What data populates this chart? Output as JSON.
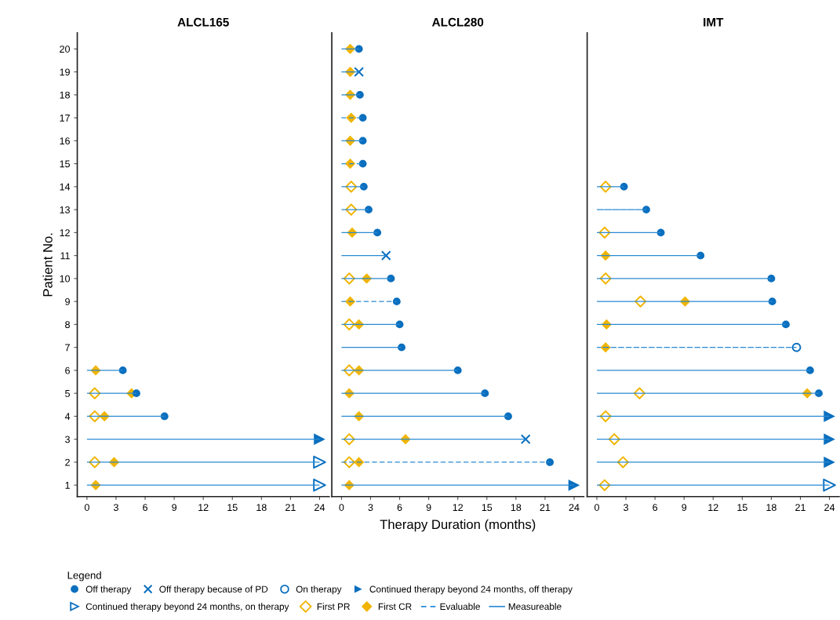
{
  "chart_data": [
    {
      "type": "bar",
      "orientation": "horizontal",
      "title": "ALCL165",
      "ylabel": "Patient No.",
      "categories": [
        "20",
        "19",
        "18",
        "17",
        "16",
        "15",
        "14",
        "13",
        "12",
        "11",
        "10",
        "9",
        "8",
        "7",
        "6",
        "5",
        "4",
        "3",
        "2",
        "1"
      ],
      "xlim": [
        -1,
        25
      ],
      "xticks": [
        0,
        3,
        6,
        9,
        12,
        15,
        18,
        21,
        24
      ],
      "series": [
        {
          "line_style": "solid",
          "color": "#2a8ad4",
          "values": [
            null,
            null,
            null,
            null,
            null,
            null,
            null,
            null,
            null,
            null,
            null,
            null,
            null,
            null,
            3.7,
            5.1,
            8.0,
            24,
            24,
            24
          ]
        },
        {
          "type": "scatter",
          "marker": "diamond-open",
          "color": "#f0b400",
          "values": [
            null,
            null,
            null,
            null,
            null,
            null,
            null,
            null,
            null,
            null,
            null,
            null,
            null,
            null,
            null,
            0.8,
            0.8,
            null,
            0.8,
            null
          ]
        },
        {
          "type": "scatter",
          "marker": "diamond",
          "color": "#f0b400",
          "values": [
            null,
            null,
            null,
            null,
            null,
            null,
            null,
            null,
            null,
            null,
            null,
            null,
            null,
            null,
            0.9,
            4.6,
            1.8,
            null,
            2.8,
            0.9
          ]
        },
        {
          "type": "scatter",
          "marker": "circle",
          "color": "#0a6fbf",
          "values": [
            null,
            null,
            null,
            null,
            null,
            null,
            null,
            null,
            null,
            null,
            null,
            null,
            null,
            null,
            3.7,
            5.1,
            8.0,
            null,
            null,
            null
          ]
        },
        {
          "type": "scatter",
          "marker": "triangle",
          "color": "#0a6fbf",
          "values": [
            null,
            null,
            null,
            null,
            null,
            null,
            null,
            null,
            null,
            null,
            null,
            null,
            null,
            null,
            null,
            null,
            null,
            24,
            null,
            null
          ]
        },
        {
          "type": "scatter",
          "marker": "triangle-open",
          "color": "#0a6fbf",
          "values": [
            null,
            null,
            null,
            null,
            null,
            null,
            null,
            null,
            null,
            null,
            null,
            null,
            null,
            null,
            null,
            null,
            null,
            null,
            24,
            24
          ]
        }
      ]
    },
    {
      "type": "bar",
      "orientation": "horizontal",
      "title": "ALCL280",
      "xlabel": "Therapy Duration (months)",
      "tick_labels": "x",
      "legend": "bottom",
      "legend_title": "Legend",
      "categories": [
        "20",
        "19",
        "18",
        "17",
        "16",
        "15",
        "14",
        "13",
        "12",
        "11",
        "10",
        "9",
        "8",
        "7",
        "6",
        "5",
        "4",
        "3",
        "2",
        "1"
      ],
      "xlim": [
        -1,
        25
      ],
      "xticks": [
        0,
        3,
        6,
        9,
        12,
        15,
        18,
        21,
        24
      ],
      "series": [
        {
          "name": "Off therapy",
          "type": "scatter",
          "marker": "circle",
          "color": "#0a6fbf",
          "values": [
            1.8,
            null,
            1.9,
            2.2,
            2.2,
            2.2,
            2.3,
            2.8,
            3.7,
            null,
            5.1,
            5.7,
            6.0,
            6.2,
            12.0,
            14.8,
            17.2,
            null,
            21.5,
            null
          ]
        },
        {
          "name": "Off therapy because of PD",
          "type": "scatter",
          "marker": "cross",
          "color": "#0a6fbf",
          "values": [
            null,
            1.8,
            null,
            null,
            null,
            null,
            null,
            null,
            null,
            4.6,
            null,
            null,
            null,
            null,
            null,
            null,
            null,
            19.0,
            null,
            null
          ]
        },
        {
          "name": "On therapy",
          "type": "scatter",
          "marker": "circle-open",
          "color": "#0a6fbf",
          "values": [
            null,
            null,
            null,
            null,
            null,
            null,
            null,
            null,
            null,
            null,
            null,
            null,
            null,
            null,
            null,
            null,
            null,
            null,
            null,
            null
          ]
        },
        {
          "name": "Continued therapy beyond 24 months, off therapy",
          "type": "scatter",
          "marker": "triangle",
          "color": "#0a6fbf",
          "values": [
            null,
            null,
            null,
            null,
            null,
            null,
            null,
            null,
            null,
            null,
            null,
            null,
            null,
            null,
            null,
            null,
            null,
            null,
            null,
            24
          ]
        },
        {
          "name": "Continued therapy beyond 24 months, on therapy",
          "type": "scatter",
          "marker": "triangle-open",
          "color": "#0a6fbf",
          "values": [
            null,
            null,
            null,
            null,
            null,
            null,
            null,
            null,
            null,
            null,
            null,
            null,
            null,
            null,
            null,
            null,
            null,
            null,
            null,
            null
          ]
        },
        {
          "name": "First PR",
          "type": "scatter",
          "marker": "diamond-open",
          "color": "#f0b400",
          "values": [
            null,
            null,
            null,
            null,
            null,
            null,
            1.0,
            1.0,
            null,
            null,
            0.8,
            null,
            0.8,
            null,
            0.8,
            null,
            null,
            0.8,
            0.8,
            null
          ]
        },
        {
          "name": "First CR",
          "type": "scatter",
          "marker": "diamond",
          "color": "#f0b400",
          "values": [
            0.9,
            0.9,
            0.9,
            1.0,
            0.9,
            0.9,
            null,
            null,
            1.1,
            null,
            2.6,
            0.9,
            1.8,
            null,
            1.8,
            0.8,
            1.8,
            6.6,
            1.8,
            0.8
          ]
        },
        {
          "name": "Evaluable",
          "line_style": "dashed",
          "color": "#2a8ad4",
          "values": [
            null,
            null,
            null,
            2.2,
            null,
            2.2,
            null,
            null,
            null,
            null,
            null,
            5.7,
            null,
            null,
            null,
            null,
            null,
            null,
            21.5,
            null
          ]
        },
        {
          "name": "Measureable",
          "line_style": "solid",
          "color": "#2a8ad4",
          "values": [
            1.8,
            1.8,
            1.9,
            null,
            2.2,
            null,
            2.3,
            2.8,
            3.7,
            4.6,
            5.1,
            null,
            6.0,
            6.2,
            12.0,
            14.8,
            17.2,
            19.0,
            null,
            24
          ]
        }
      ]
    },
    {
      "type": "bar",
      "orientation": "horizontal",
      "title": "IMT",
      "tick_labels": "x",
      "categories": [
        "20",
        "19",
        "18",
        "17",
        "16",
        "15",
        "14",
        "13",
        "12",
        "11",
        "10",
        "9",
        "8",
        "7",
        "6",
        "5",
        "4",
        "3",
        "2",
        "1"
      ],
      "xlim": [
        -1,
        25
      ],
      "xticks": [
        0,
        3,
        6,
        9,
        12,
        15,
        18,
        21,
        24
      ],
      "series": [
        {
          "line_style": "solid",
          "color": "#2a8ad4",
          "values": [
            null,
            null,
            null,
            null,
            null,
            null,
            2.8,
            null,
            6.6,
            10.7,
            18.0,
            18.1,
            19.5,
            null,
            22.0,
            22.9,
            24,
            24,
            24,
            24
          ]
        },
        {
          "line_style": "dashed",
          "color": "#2a8ad4",
          "values": [
            null,
            null,
            null,
            null,
            null,
            null,
            null,
            5.1,
            null,
            null,
            null,
            null,
            null,
            20.6,
            null,
            null,
            null,
            null,
            null,
            null
          ]
        },
        {
          "type": "scatter",
          "marker": "diamond-open",
          "color": "#f0b400",
          "values": [
            null,
            null,
            null,
            null,
            null,
            null,
            0.9,
            null,
            0.8,
            null,
            0.9,
            4.5,
            null,
            null,
            null,
            4.4,
            0.9,
            1.8,
            2.7,
            0.8
          ]
        },
        {
          "type": "scatter",
          "marker": "diamond",
          "color": "#f0b400",
          "values": [
            null,
            null,
            null,
            null,
            null,
            null,
            null,
            null,
            null,
            0.9,
            null,
            9.1,
            1.0,
            0.9,
            null,
            21.7,
            null,
            null,
            null,
            null
          ]
        },
        {
          "type": "scatter",
          "marker": "circle",
          "color": "#0a6fbf",
          "values": [
            null,
            null,
            null,
            null,
            null,
            null,
            2.8,
            5.1,
            6.6,
            10.7,
            18.0,
            18.1,
            19.5,
            null,
            22.0,
            22.9,
            null,
            null,
            null,
            null
          ]
        },
        {
          "type": "scatter",
          "marker": "circle-open",
          "color": "#0a6fbf",
          "values": [
            null,
            null,
            null,
            null,
            null,
            null,
            null,
            null,
            null,
            null,
            null,
            null,
            null,
            20.6,
            null,
            null,
            null,
            null,
            null,
            null
          ]
        },
        {
          "type": "scatter",
          "marker": "triangle",
          "color": "#0a6fbf",
          "values": [
            null,
            null,
            null,
            null,
            null,
            null,
            null,
            null,
            null,
            null,
            null,
            null,
            null,
            null,
            null,
            null,
            24,
            24,
            24,
            null
          ]
        },
        {
          "type": "scatter",
          "marker": "triangle-open",
          "color": "#0a6fbf",
          "values": [
            null,
            null,
            null,
            null,
            null,
            null,
            null,
            null,
            null,
            null,
            null,
            null,
            null,
            null,
            null,
            null,
            null,
            null,
            null,
            24
          ]
        }
      ]
    }
  ]
}
